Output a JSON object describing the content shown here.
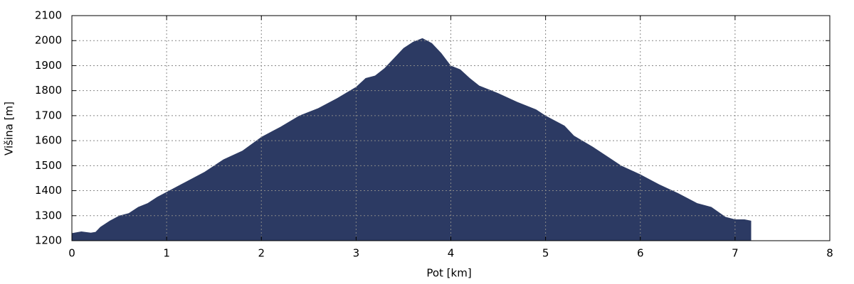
{
  "chart_data": {
    "type": "area",
    "xlabel": "Pot [km]",
    "ylabel": "Višina [m]",
    "color": "#2c3a63",
    "x": [
      0,
      0.1,
      0.2,
      0.25,
      0.3,
      0.4,
      0.5,
      0.6,
      0.7,
      0.8,
      0.9,
      1.0,
      1.2,
      1.4,
      1.6,
      1.8,
      2.0,
      2.2,
      2.4,
      2.6,
      2.8,
      3.0,
      3.1,
      3.2,
      3.3,
      3.4,
      3.5,
      3.6,
      3.7,
      3.8,
      3.9,
      4.0,
      4.1,
      4.2,
      4.3,
      4.5,
      4.7,
      4.9,
      5.0,
      5.2,
      5.3,
      5.5,
      5.7,
      5.8,
      6.0,
      6.2,
      6.4,
      6.6,
      6.75,
      6.9,
      7.0,
      7.1,
      7.17
    ],
    "values": [
      1230,
      1237,
      1232,
      1235,
      1255,
      1280,
      1300,
      1310,
      1335,
      1350,
      1375,
      1395,
      1435,
      1475,
      1525,
      1560,
      1615,
      1655,
      1700,
      1730,
      1770,
      1815,
      1850,
      1860,
      1890,
      1930,
      1970,
      1995,
      2010,
      1990,
      1950,
      1900,
      1885,
      1850,
      1820,
      1790,
      1755,
      1725,
      1700,
      1660,
      1620,
      1575,
      1525,
      1500,
      1465,
      1425,
      1390,
      1350,
      1335,
      1295,
      1285,
      1285,
      1280
    ],
    "xlim": [
      0,
      8
    ],
    "xticks": [
      0,
      1,
      2,
      3,
      4,
      5,
      6,
      7,
      8
    ],
    "ylim": [
      1200,
      2100
    ],
    "yticks": [
      1200,
      1300,
      1400,
      1500,
      1600,
      1700,
      1800,
      1900,
      2000,
      2100
    ],
    "grid": true
  }
}
